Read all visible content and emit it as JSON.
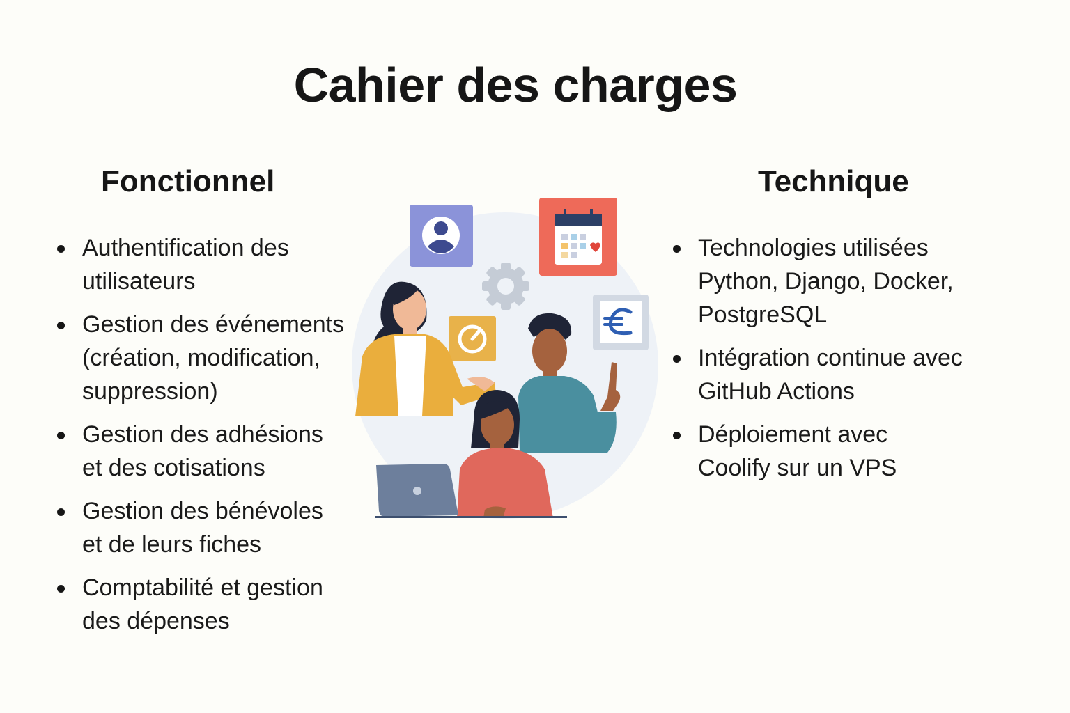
{
  "title": "Cahier des charges",
  "fonctionnel": {
    "heading": "Fonctionnel",
    "items": [
      "Authentification des utilisateurs",
      "Gestion des événements (création, modification, suppression)",
      "Gestion des adhésions et des cotisations",
      "Gestion des bénévoles et de leurs fiches",
      "Comptabilité et gestion des dépenses"
    ]
  },
  "technique": {
    "heading": "Technique",
    "items": [
      "Technologies utilisées Python, Django, Docker, PostgreSQL",
      "Intégration continue avec GitHub Actions",
      "Déploiement avec Coolify sur un VPS"
    ]
  },
  "illustration": {
    "icons": [
      "user-profile-icon",
      "calendar-icon",
      "gear-icon",
      "dashboard-icon",
      "euro-icon",
      "laptop-icon"
    ],
    "colors": {
      "user_tile": "#8b93d9",
      "calendar_tile": "#ee6a59",
      "dashboard_tile": "#e8b24a",
      "euro_accent": "#2f5fb3",
      "backdrop": "#eef2f7"
    }
  }
}
